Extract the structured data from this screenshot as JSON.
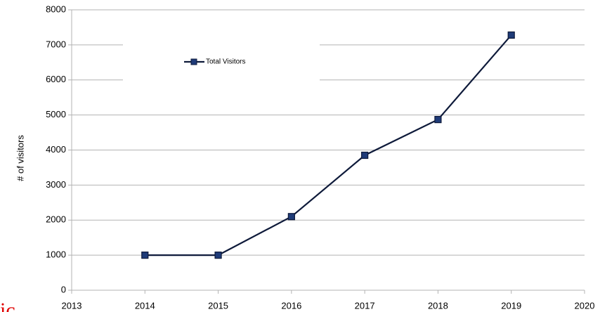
{
  "chart_data": {
    "type": "line",
    "ylabel": "# of visitors",
    "x": [
      2014,
      2015,
      2016,
      2017,
      2018,
      2019
    ],
    "series": [
      {
        "name": "Total Visitors",
        "color": "#0e1a3a",
        "marker_color": "#1f3b78",
        "values": [
          1000,
          1000,
          2100,
          3850,
          4870,
          7280
        ]
      }
    ],
    "xlim": [
      2013,
      2020
    ],
    "xticks": [
      2013,
      2014,
      2015,
      2016,
      2017,
      2018,
      2019,
      2020
    ],
    "ylim": [
      0,
      8000
    ],
    "yticks": [
      0,
      1000,
      2000,
      3000,
      4000,
      5000,
      6000,
      7000,
      8000
    ],
    "grid": true,
    "legend": "upper left",
    "annotation": "ic"
  }
}
